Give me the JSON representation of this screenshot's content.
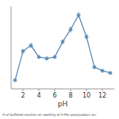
{
  "chart_data": {
    "type": "line",
    "x": [
      1,
      2,
      3,
      4,
      5,
      6,
      7,
      8,
      9,
      10,
      11,
      12,
      13
    ],
    "values": [
      0.1,
      0.5,
      0.58,
      0.42,
      0.4,
      0.42,
      0.63,
      0.8,
      1.0,
      0.7,
      0.28,
      0.23,
      0.2
    ],
    "xerr": [
      0.18,
      0.18,
      0.18,
      0.18,
      0.18,
      0.18,
      0.18,
      0.18,
      0.18,
      0.18,
      0.18,
      0.18,
      0.18
    ],
    "yerr": [
      0.02,
      0.025,
      0.025,
      0.02,
      0.02,
      0.02,
      0.025,
      0.03,
      0.03,
      0.025,
      0.02,
      0.02,
      0.02
    ],
    "color": "#5b8db8",
    "marker": "circle",
    "line_style": "solid",
    "xlabel": "pH",
    "xlim": [
      0.5,
      13.5
    ],
    "ylim": [
      -0.02,
      1.12
    ],
    "xticks": [
      2,
      4,
      6,
      8,
      10,
      12
    ],
    "tick_labels": "x",
    "caption": "H of buffered solution on swelling of H-Pec-poly(sodium acr"
  }
}
